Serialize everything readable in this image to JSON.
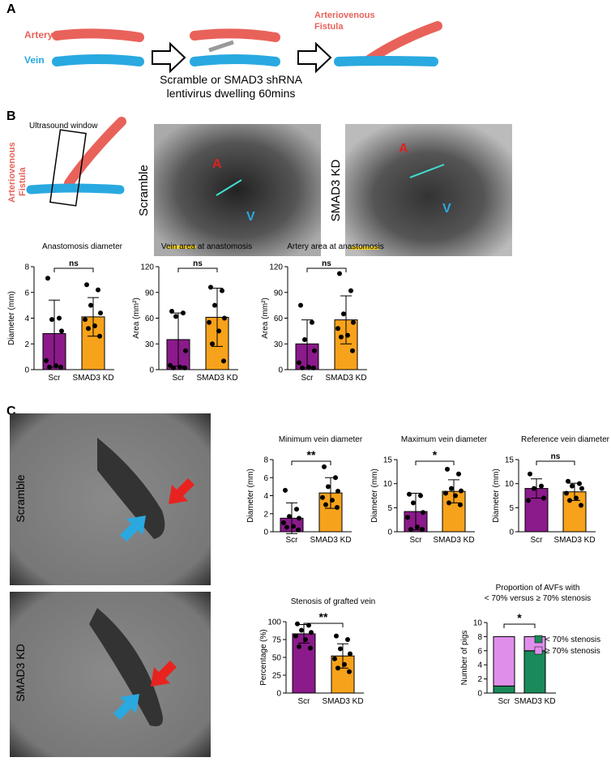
{
  "panel_a": {
    "label": "A",
    "artery": "Artery",
    "vein": "Vein",
    "fistula": [
      "Arteriovenous",
      "Fistula"
    ],
    "caption": [
      "Scramble or SMAD3 shRNA",
      "lentivirus dwelling 60mins"
    ]
  },
  "panel_b": {
    "label": "B",
    "window": "Ultrasound window",
    "fistula": [
      "Arteriovenous",
      "Fistula"
    ],
    "images": [
      {
        "label": "Scramble",
        "artery": "A",
        "vein": "V"
      },
      {
        "label": "SMAD3 KD",
        "artery": "A",
        "vein": "V"
      }
    ]
  },
  "panel_c": {
    "label": "C",
    "images": [
      "Scramble",
      "SMAD3 KD"
    ]
  },
  "chart_data": [
    {
      "type": "bar",
      "title": "Anastomosis diameter",
      "y_label": "Diameter (mm)",
      "categories": [
        "Scr",
        "SMAD3 KD"
      ],
      "colors": [
        "#8b1a8b",
        "#f7a21b"
      ],
      "values": [
        2.8,
        4.1
      ],
      "errors": [
        2.6,
        1.5
      ],
      "points": [
        [
          7.1,
          4.0,
          3.9,
          3.0,
          0.7,
          0.3,
          0.2,
          0.2
        ],
        [
          6.6,
          6.2,
          5.0,
          4.4,
          3.9,
          3.4,
          3.2,
          2.6
        ]
      ],
      "significance": "ns",
      "ylim": [
        0,
        8
      ],
      "yticks": [
        0,
        2,
        4,
        6,
        8
      ]
    },
    {
      "type": "bar",
      "title": "Vein area at anastomosis",
      "y_label": "Area (mm²)",
      "categories": [
        "Scr",
        "SMAD3 KD"
      ],
      "colors": [
        "#8b1a8b",
        "#f7a21b"
      ],
      "values": [
        35,
        61
      ],
      "errors": [
        31,
        34
      ],
      "points": [
        [
          68,
          66,
          62,
          22,
          5,
          3,
          2,
          2
        ],
        [
          96,
          92,
          75,
          60,
          55,
          45,
          30,
          10
        ]
      ],
      "significance": "ns",
      "ylim": [
        0,
        120
      ],
      "yticks": [
        0,
        30,
        60,
        90,
        120
      ]
    },
    {
      "type": "bar",
      "title": "Artery area at anastomosis",
      "y_label": "Area (mm²)",
      "categories": [
        "Scr",
        "SMAD3 KD"
      ],
      "colors": [
        "#8b1a8b",
        "#f7a21b"
      ],
      "values": [
        30,
        58
      ],
      "errors": [
        28,
        28
      ],
      "points": [
        [
          75,
          55,
          35,
          22,
          8,
          3,
          2,
          2
        ],
        [
          112,
          92,
          65,
          55,
          48,
          40,
          38,
          22
        ]
      ],
      "significance": "ns",
      "ylim": [
        0,
        120
      ],
      "yticks": [
        0,
        30,
        60,
        90,
        120
      ]
    },
    {
      "type": "bar",
      "title": "Minimum vein diameter",
      "y_label": "Diameter (mm)",
      "categories": [
        "Scr",
        "SMAD3 KD"
      ],
      "colors": [
        "#8b1a8b",
        "#f7a21b"
      ],
      "values": [
        1.5,
        4.3
      ],
      "errors": [
        1.7,
        1.7
      ],
      "points": [
        [
          4.6,
          2.5,
          1.7,
          1.5,
          1.0,
          0.6,
          0.5,
          0.2
        ],
        [
          7.2,
          6.0,
          5.0,
          4.5,
          3.8,
          3.5,
          3.0,
          2.7
        ]
      ],
      "significance": "**",
      "ylim": [
        0,
        8
      ],
      "yticks": [
        0,
        2,
        4,
        6,
        8
      ]
    },
    {
      "type": "bar",
      "title": "Maximum vein diameter",
      "y_label": "Diameter (mm)",
      "categories": [
        "Scr",
        "SMAD3 KD"
      ],
      "colors": [
        "#8b1a8b",
        "#f7a21b"
      ],
      "values": [
        4.2,
        8.4
      ],
      "errors": [
        3.8,
        2.4
      ],
      "points": [
        [
          7.8,
          7.5,
          6.0,
          4.0,
          3.0,
          1.0,
          0.5,
          0.5
        ],
        [
          13,
          12,
          9,
          8.5,
          8,
          7.5,
          6,
          5.6
        ]
      ],
      "significance": "*",
      "ylim": [
        0,
        15
      ],
      "yticks": [
        0,
        5,
        10,
        15
      ]
    },
    {
      "type": "bar",
      "title": "Reference vein diameter",
      "y_label": "Diameter (mm)",
      "categories": [
        "Scr",
        "SMAD3 KD"
      ],
      "colors": [
        "#8b1a8b",
        "#f7a21b"
      ],
      "values": [
        9,
        8.3
      ],
      "errors": [
        2,
        1.8
      ],
      "points": [
        [
          12,
          9.5,
          9,
          7,
          6.5
        ],
        [
          10.5,
          10,
          9.5,
          9,
          8,
          7,
          6.5,
          5.5
        ]
      ],
      "significance": "ns",
      "ylim": [
        0,
        15
      ],
      "yticks": [
        0,
        5,
        10,
        15
      ]
    },
    {
      "type": "bar",
      "title": "Stenosis of grafted vein",
      "y_label": "Percentage (%)",
      "categories": [
        "Scr",
        "SMAD3 KD"
      ],
      "colors": [
        "#8b1a8b",
        "#f7a21b"
      ],
      "values": [
        83,
        52
      ],
      "errors": [
        13,
        17
      ],
      "points": [
        [
          97,
          95,
          88,
          85,
          80,
          75,
          65,
          63
        ],
        [
          80,
          75,
          62,
          55,
          48,
          40,
          35,
          30
        ]
      ],
      "significance": "**",
      "ylim": [
        0,
        100
      ],
      "yticks": [
        0,
        25,
        50,
        75,
        100
      ]
    },
    {
      "type": "stacked_bar",
      "title": [
        "Proportion of AVFs with",
        "< 70% versus ≥ 70% stenosis"
      ],
      "y_label": "Number of pigs",
      "categories": [
        "Scr",
        "SMAD3 KD"
      ],
      "series": [
        {
          "name": "< 70% stenosis",
          "color": "#1a8a5a",
          "values": [
            1,
            6
          ]
        },
        {
          "name": "≥ 70% stenosis",
          "color": "#df8fea",
          "values": [
            7,
            2
          ]
        }
      ],
      "significance": "*",
      "ylim": [
        0,
        10
      ],
      "yticks": [
        0,
        2,
        4,
        6,
        8,
        10
      ]
    }
  ]
}
